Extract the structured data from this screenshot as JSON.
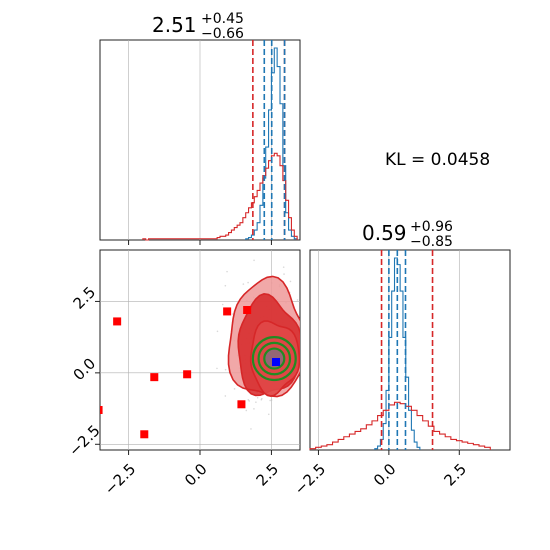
{
  "chart_data": [
    {
      "type": "histogram",
      "panel": "top-left",
      "title": {
        "value": "2.51",
        "plus": "+0.45",
        "minus": "−0.66"
      },
      "xlim": [
        -3.5,
        3.5
      ],
      "grid": true,
      "quantile_lines": {
        "red": [
          1.85,
          2.96
        ],
        "blue": [
          2.25,
          2.51,
          2.96
        ]
      },
      "series": [
        {
          "color": "#1f77b4",
          "bin_edges": [
            1.6,
            1.7,
            1.8,
            1.9,
            2.0,
            2.1,
            2.2,
            2.3,
            2.4,
            2.5,
            2.6,
            2.7,
            2.8,
            2.9,
            3.0,
            3.1,
            3.2,
            3.3,
            3.4
          ],
          "counts": [
            1,
            2,
            4,
            8,
            14,
            28,
            50,
            75,
            105,
            135,
            155,
            140,
            110,
            60,
            22,
            8,
            3,
            1
          ]
        },
        {
          "color": "#d62728",
          "bin_edges": [
            -2.0,
            -1.9,
            -1.8,
            0.5,
            0.6,
            0.7,
            0.8,
            0.9,
            1.0,
            1.1,
            1.2,
            1.3,
            1.4,
            1.5,
            1.6,
            1.7,
            1.8,
            1.9,
            2.0,
            2.1,
            2.2,
            2.3,
            2.4,
            2.5,
            2.6,
            2.7,
            2.8,
            2.9,
            3.0,
            3.1,
            3.2,
            3.3,
            3.4
          ],
          "counts": [
            1,
            0,
            1,
            1,
            2,
            3,
            3,
            4,
            6,
            8,
            10,
            12,
            14,
            18,
            22,
            26,
            30,
            35,
            40,
            46,
            52,
            58,
            64,
            68,
            70,
            68,
            60,
            48,
            32,
            18,
            8,
            3
          ]
        }
      ]
    },
    {
      "type": "histogram",
      "panel": "bottom-right",
      "title": {
        "value": "0.59",
        "plus": "+0.96",
        "minus": "−0.85"
      },
      "xlim": [
        -2.8,
        4.3
      ],
      "xticks": [
        "−2.5",
        "0.0",
        "2.5"
      ],
      "xtick_values": [
        -2.5,
        0.0,
        2.5
      ],
      "grid": true,
      "quantile_lines": {
        "red": [
          -0.26,
          1.55
        ],
        "blue": [
          0.0,
          0.3,
          0.59
        ]
      },
      "series": [
        {
          "color": "#1f77b4",
          "bin_edges": [
            -0.5,
            -0.4,
            -0.3,
            -0.2,
            -0.1,
            0.0,
            0.1,
            0.2,
            0.3,
            0.4,
            0.5,
            0.6,
            0.7,
            0.8,
            0.9,
            1.0,
            1.1
          ],
          "counts": [
            1,
            3,
            8,
            20,
            45,
            85,
            120,
            145,
            140,
            120,
            85,
            55,
            30,
            15,
            6,
            2
          ]
        },
        {
          "color": "#d62728",
          "bin_edges": [
            -2.8,
            -2.6,
            -2.4,
            -2.2,
            -2.0,
            -1.8,
            -1.6,
            -1.4,
            -1.2,
            -1.0,
            -0.8,
            -0.6,
            -0.4,
            -0.2,
            0.0,
            0.2,
            0.4,
            0.6,
            0.8,
            1.0,
            1.2,
            1.4,
            1.6,
            1.8,
            2.0,
            2.2,
            2.4,
            2.6,
            2.8,
            3.0,
            3.2,
            3.4,
            3.6
          ],
          "counts": [
            1,
            2,
            3,
            4,
            6,
            8,
            10,
            12,
            14,
            16,
            19,
            22,
            26,
            30,
            34,
            36,
            35,
            33,
            30,
            26,
            22,
            18,
            14,
            12,
            10,
            8,
            7,
            6,
            5,
            4,
            3,
            2
          ]
        }
      ]
    },
    {
      "type": "scatter",
      "panel": "bottom-left",
      "xlim": [
        -3.5,
        3.5
      ],
      "ylim": [
        -2.7,
        4.3
      ],
      "xticks": [
        "−2.5",
        "0.0",
        "2.5"
      ],
      "xtick_values": [
        -2.5,
        0.0,
        2.5
      ],
      "yticks": [
        "−2.5",
        "0.0",
        "2.5"
      ],
      "ytick_values": [
        -2.5,
        0.0,
        2.5
      ],
      "grid": true,
      "red_markers": [
        {
          "x": -2.9,
          "y": 1.8
        },
        {
          "x": -1.6,
          "y": -0.15
        },
        {
          "x": -0.45,
          "y": -0.05
        },
        {
          "x": 0.95,
          "y": 2.15
        },
        {
          "x": 1.65,
          "y": 2.2
        },
        {
          "x": 1.45,
          "y": -1.1
        },
        {
          "x": -1.95,
          "y": -2.15
        },
        {
          "x": -3.55,
          "y": -1.3
        }
      ],
      "blue_marker": {
        "x": 2.66,
        "y": 0.38
      },
      "red_contours": [
        {
          "cx": 2.35,
          "cy": 1.15,
          "rx": 1.35,
          "ry": 2.05,
          "level": "outer"
        },
        {
          "cx": 2.4,
          "cy": 0.9,
          "rx": 1.1,
          "ry": 1.7,
          "level": "mid"
        },
        {
          "cx": 2.6,
          "cy": 0.55,
          "rx": 0.85,
          "ry": 1.25,
          "level": "inner"
        }
      ],
      "green_contours": [
        {
          "cx": 2.6,
          "cy": 0.5,
          "r": 0.75
        },
        {
          "cx": 2.6,
          "cy": 0.5,
          "r": 0.55
        },
        {
          "cx": 2.6,
          "cy": 0.5,
          "r": 0.35
        }
      ]
    }
  ],
  "annotation": {
    "kl_label": "KL = 0.0458"
  },
  "colors": {
    "blue": "#1f77b4",
    "red": "#d62728",
    "red_fill_light": "#ee9999",
    "red_fill_dark": "#d62728",
    "green": "#228b22",
    "marker_blue": "#0000ff",
    "marker_red": "#ff0000",
    "grid": "#b0b0b0"
  }
}
